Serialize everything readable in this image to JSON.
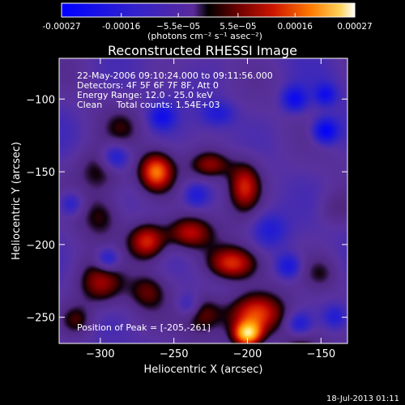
{
  "chart_data": {
    "type": "heatmap",
    "title": "Reconstructed RHESSI Image",
    "xlabel": "Heliocentric X (arcsec)",
    "ylabel": "Heliocentric Y (arcsec)",
    "xlim": [
      -328,
      -132
    ],
    "ylim": [
      -268,
      -72
    ],
    "x_ticks": [
      -300,
      -250,
      -200,
      -150
    ],
    "y_ticks": [
      -100,
      -150,
      -200,
      -250
    ],
    "colorbar": {
      "range": [
        -0.00027,
        0.00027
      ],
      "tick_values": [
        -0.00027,
        -0.00016,
        -5.5e-05,
        5.5e-05,
        0.00016,
        0.00027
      ],
      "tick_labels": [
        "-0.00027",
        "-0.00016",
        "−5.5e−05",
        "5.5e−05",
        "0.00016",
        "0.00027"
      ],
      "unit_label": "(photons cm⁻² s⁻¹ asec⁻²)"
    },
    "annotations": [
      "22-May-2006 09:10:24.000 to 09:11:56.000",
      "Detectors: 4F 5F 6F 7F 8F, Att 0",
      "Energy Range: 12.0 - 25.0 keV",
      "Clean     Total counts: 1.54E+03"
    ],
    "peak_label": "Position of Peak = [-205,-261]",
    "peak_position": [
      -205,
      -261
    ],
    "sources": [
      {
        "x": -200,
        "y": -262,
        "amp": 1.0,
        "sx": 7,
        "sy": 6
      },
      {
        "x": -195,
        "y": -248,
        "amp": 0.75,
        "sx": 14,
        "sy": 10
      },
      {
        "x": -230,
        "y": -247,
        "amp": 0.5,
        "sx": 10,
        "sy": 10
      },
      {
        "x": -268,
        "y": -198,
        "amp": 0.78,
        "sx": 9,
        "sy": 9
      },
      {
        "x": -262,
        "y": -150,
        "amp": 0.82,
        "sx": 8,
        "sy": 9
      },
      {
        "x": -225,
        "y": -145,
        "amp": 0.55,
        "sx": 10,
        "sy": 7
      },
      {
        "x": -202,
        "y": -160,
        "amp": 0.7,
        "sx": 8,
        "sy": 12
      },
      {
        "x": -240,
        "y": -192,
        "amp": 0.62,
        "sx": 11,
        "sy": 8
      },
      {
        "x": -210,
        "y": -213,
        "amp": 0.7,
        "sx": 12,
        "sy": 8
      },
      {
        "x": -300,
        "y": -227,
        "amp": 0.55,
        "sx": 11,
        "sy": 11
      },
      {
        "x": -300,
        "y": -150,
        "amp": 0.45,
        "sx": 12,
        "sy": 12
      },
      {
        "x": -300,
        "y": -180,
        "amp": 0.35,
        "sx": 10,
        "sy": 10
      },
      {
        "x": -316,
        "y": -252,
        "amp": 0.4,
        "sx": 8,
        "sy": 8
      },
      {
        "x": -268,
        "y": -232,
        "amp": 0.35,
        "sx": 9,
        "sy": 9
      },
      {
        "x": -165,
        "y": -270,
        "amp": 0.35,
        "sx": 10,
        "sy": 8
      },
      {
        "x": -150,
        "y": -220,
        "amp": 0.3,
        "sx": 9,
        "sy": 9
      },
      {
        "x": -285,
        "y": -120,
        "amp": 0.25,
        "sx": 9,
        "sy": 9
      },
      {
        "x": -140,
        "y": -175,
        "amp": 0.2,
        "sx": 8,
        "sy": 8
      },
      {
        "x": -290,
        "y": -140,
        "amp": -0.5,
        "sx": 7,
        "sy": 7
      },
      {
        "x": -258,
        "y": -112,
        "amp": -0.45,
        "sx": 6,
        "sy": 6
      },
      {
        "x": -220,
        "y": -110,
        "amp": -0.35,
        "sx": 8,
        "sy": 6
      },
      {
        "x": -168,
        "y": -100,
        "amp": -0.55,
        "sx": 6,
        "sy": 6
      },
      {
        "x": -147,
        "y": -122,
        "amp": -0.7,
        "sx": 6,
        "sy": 6
      },
      {
        "x": -147,
        "y": -97,
        "amp": -0.45,
        "sx": 5,
        "sy": 5
      },
      {
        "x": -295,
        "y": -210,
        "amp": -0.5,
        "sx": 6,
        "sy": 6
      },
      {
        "x": -320,
        "y": -172,
        "amp": -0.35,
        "sx": 6,
        "sy": 6
      },
      {
        "x": -172,
        "y": -215,
        "amp": -0.45,
        "sx": 6,
        "sy": 6
      },
      {
        "x": -235,
        "y": -166,
        "amp": -0.35,
        "sx": 6,
        "sy": 6
      },
      {
        "x": -240,
        "y": -242,
        "amp": -0.35,
        "sx": 6,
        "sy": 6
      },
      {
        "x": -165,
        "y": -255,
        "amp": -0.4,
        "sx": 6,
        "sy": 6
      },
      {
        "x": -185,
        "y": -190,
        "amp": -0.3,
        "sx": 8,
        "sy": 8
      },
      {
        "x": -140,
        "y": -250,
        "amp": -0.35,
        "sx": 6,
        "sy": 6
      }
    ]
  },
  "footer": {
    "timestamp": "18-Jul-2013 01:11"
  }
}
